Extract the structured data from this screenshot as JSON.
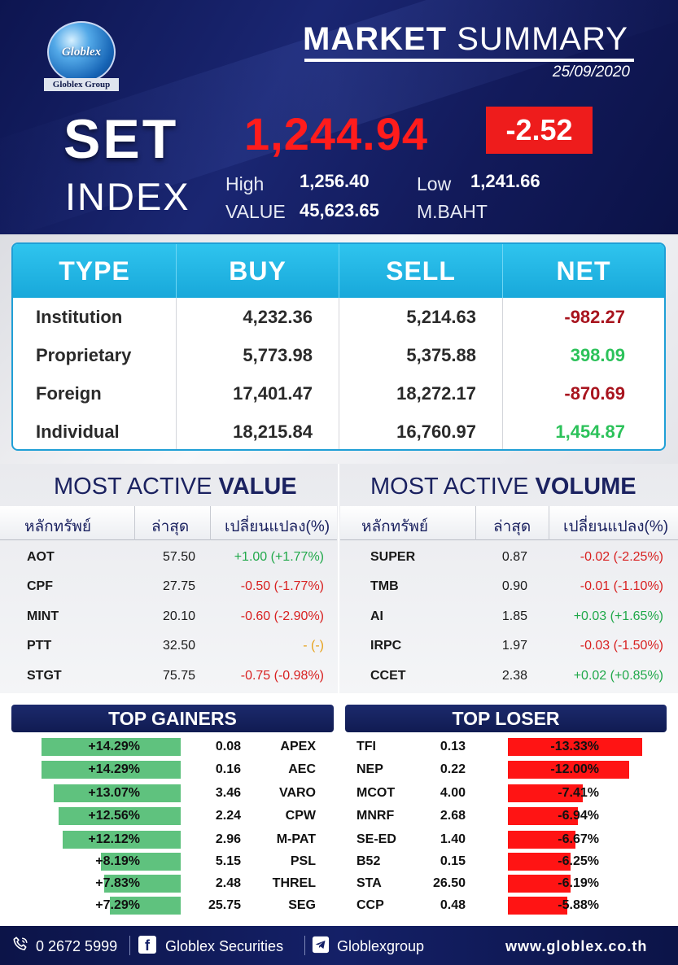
{
  "header": {
    "logo_text": "Globlex",
    "logo_group": "Globlex Group",
    "title_bold": "MARKET",
    "title_normal": "SUMMARY",
    "date": "25/09/2020",
    "index_name_top": "SET",
    "index_name_bottom": "INDEX",
    "index_value": "1,244.94",
    "index_change": "-2.52",
    "high_label": "High",
    "high_value": "1,256.40",
    "low_label": "Low",
    "low_value": "1,241.66",
    "value_label": "VALUE",
    "value_amount": "45,623.65",
    "value_unit": "M.BAHT"
  },
  "investor_table": {
    "headers": [
      "TYPE",
      "BUY",
      "SELL",
      "NET"
    ],
    "rows": [
      {
        "type": "Institution",
        "buy": "4,232.36",
        "sell": "5,214.63",
        "net": "-982.27",
        "sign": "neg"
      },
      {
        "type": "Proprietary",
        "buy": "5,773.98",
        "sell": "5,375.88",
        "net": "398.09",
        "sign": "pos"
      },
      {
        "type": "Foreign",
        "buy": "17,401.47",
        "sell": "18,272.17",
        "net": "-870.69",
        "sign": "neg"
      },
      {
        "type": "Individual",
        "buy": "18,215.84",
        "sell": "16,760.97",
        "net": "1,454.87",
        "sign": "pos"
      }
    ]
  },
  "most_active_value": {
    "title_normal": "MOST ACTIVE ",
    "title_bold": "VALUE",
    "headers": [
      "หลักทรัพย์",
      "ล่าสุด",
      "เปลี่ยนแปลง(%)"
    ],
    "rows": [
      {
        "symbol": "AOT",
        "last": "57.50",
        "change": "+1.00 (+1.77%)",
        "dir": "pos"
      },
      {
        "symbol": "CPF",
        "last": "27.75",
        "change": "-0.50 (-1.77%)",
        "dir": "neg"
      },
      {
        "symbol": "MINT",
        "last": "20.10",
        "change": "-0.60 (-2.90%)",
        "dir": "neg"
      },
      {
        "symbol": "PTT",
        "last": "32.50",
        "change": "- (-)",
        "dir": "flat"
      },
      {
        "symbol": "STGT",
        "last": "75.75",
        "change": "-0.75 (-0.98%)",
        "dir": "neg"
      }
    ]
  },
  "most_active_volume": {
    "title_normal": "MOST ACTIVE ",
    "title_bold": "VOLUME",
    "headers": [
      "หลักทรัพย์",
      "ล่าสุด",
      "เปลี่ยนแปลง(%)"
    ],
    "rows": [
      {
        "symbol": "SUPER",
        "last": "0.87",
        "change": "-0.02 (-2.25%)",
        "dir": "neg"
      },
      {
        "symbol": "TMB",
        "last": "0.90",
        "change": "-0.01 (-1.10%)",
        "dir": "neg"
      },
      {
        "symbol": "AI",
        "last": "1.85",
        "change": "+0.03 (+1.65%)",
        "dir": "pos"
      },
      {
        "symbol": "IRPC",
        "last": "1.97",
        "change": "-0.03 (-1.50%)",
        "dir": "neg"
      },
      {
        "symbol": "CCET",
        "last": "2.38",
        "change": "+0.02 (+0.85%)",
        "dir": "pos"
      }
    ]
  },
  "top_gainers": {
    "title": "TOP GAINERS",
    "rows": [
      {
        "pct": "+14.29%",
        "pct_value": 14.29,
        "price": "0.08",
        "symbol": "APEX"
      },
      {
        "pct": "+14.29%",
        "pct_value": 14.29,
        "price": "0.16",
        "symbol": "AEC"
      },
      {
        "pct": "+13.07%",
        "pct_value": 13.07,
        "price": "3.46",
        "symbol": "VARO"
      },
      {
        "pct": "+12.56%",
        "pct_value": 12.56,
        "price": "2.24",
        "symbol": "CPW"
      },
      {
        "pct": "+12.12%",
        "pct_value": 12.12,
        "price": "2.96",
        "symbol": "M-PAT"
      },
      {
        "pct": "+8.19%",
        "pct_value": 8.19,
        "price": "5.15",
        "symbol": "PSL"
      },
      {
        "pct": "+7.83%",
        "pct_value": 7.83,
        "price": "2.48",
        "symbol": "THREL"
      },
      {
        "pct": "+7.29%",
        "pct_value": 7.29,
        "price": "25.75",
        "symbol": "SEG"
      }
    ]
  },
  "top_loser": {
    "title": "TOP LOSER",
    "rows": [
      {
        "symbol": "TFI",
        "price": "0.13",
        "pct": "-13.33%",
        "pct_value": 13.33
      },
      {
        "symbol": "NEP",
        "price": "0.22",
        "pct": "-12.00%",
        "pct_value": 12.0
      },
      {
        "symbol": "MCOT",
        "price": "4.00",
        "pct": "-7.41%",
        "pct_value": 7.41
      },
      {
        "symbol": "MNRF",
        "price": "2.68",
        "pct": "-6.94%",
        "pct_value": 6.94
      },
      {
        "symbol": "SE-ED",
        "price": "1.40",
        "pct": "-6.67%",
        "pct_value": 6.67
      },
      {
        "symbol": "B52",
        "price": "0.15",
        "pct": "-6.25%",
        "pct_value": 6.25
      },
      {
        "symbol": "STA",
        "price": "26.50",
        "pct": "-6.19%",
        "pct_value": 6.19
      },
      {
        "symbol": "CCP",
        "price": "0.48",
        "pct": "-5.88%",
        "pct_value": 5.88
      }
    ]
  },
  "footer": {
    "phone_icon": "phone-icon",
    "phone": "0 2672 5999",
    "facebook_icon": "facebook-icon",
    "facebook": "Globlex Securities",
    "telegram_icon": "telegram-icon",
    "telegram": "Globlexgroup",
    "website": "www.globlex.co.th"
  },
  "colors": {
    "navy": "#101b52",
    "cyan_header": "#18a8da",
    "index_red": "#ff1c1c",
    "gain_green": "#5fc27e",
    "loss_red": "#ff1414"
  }
}
